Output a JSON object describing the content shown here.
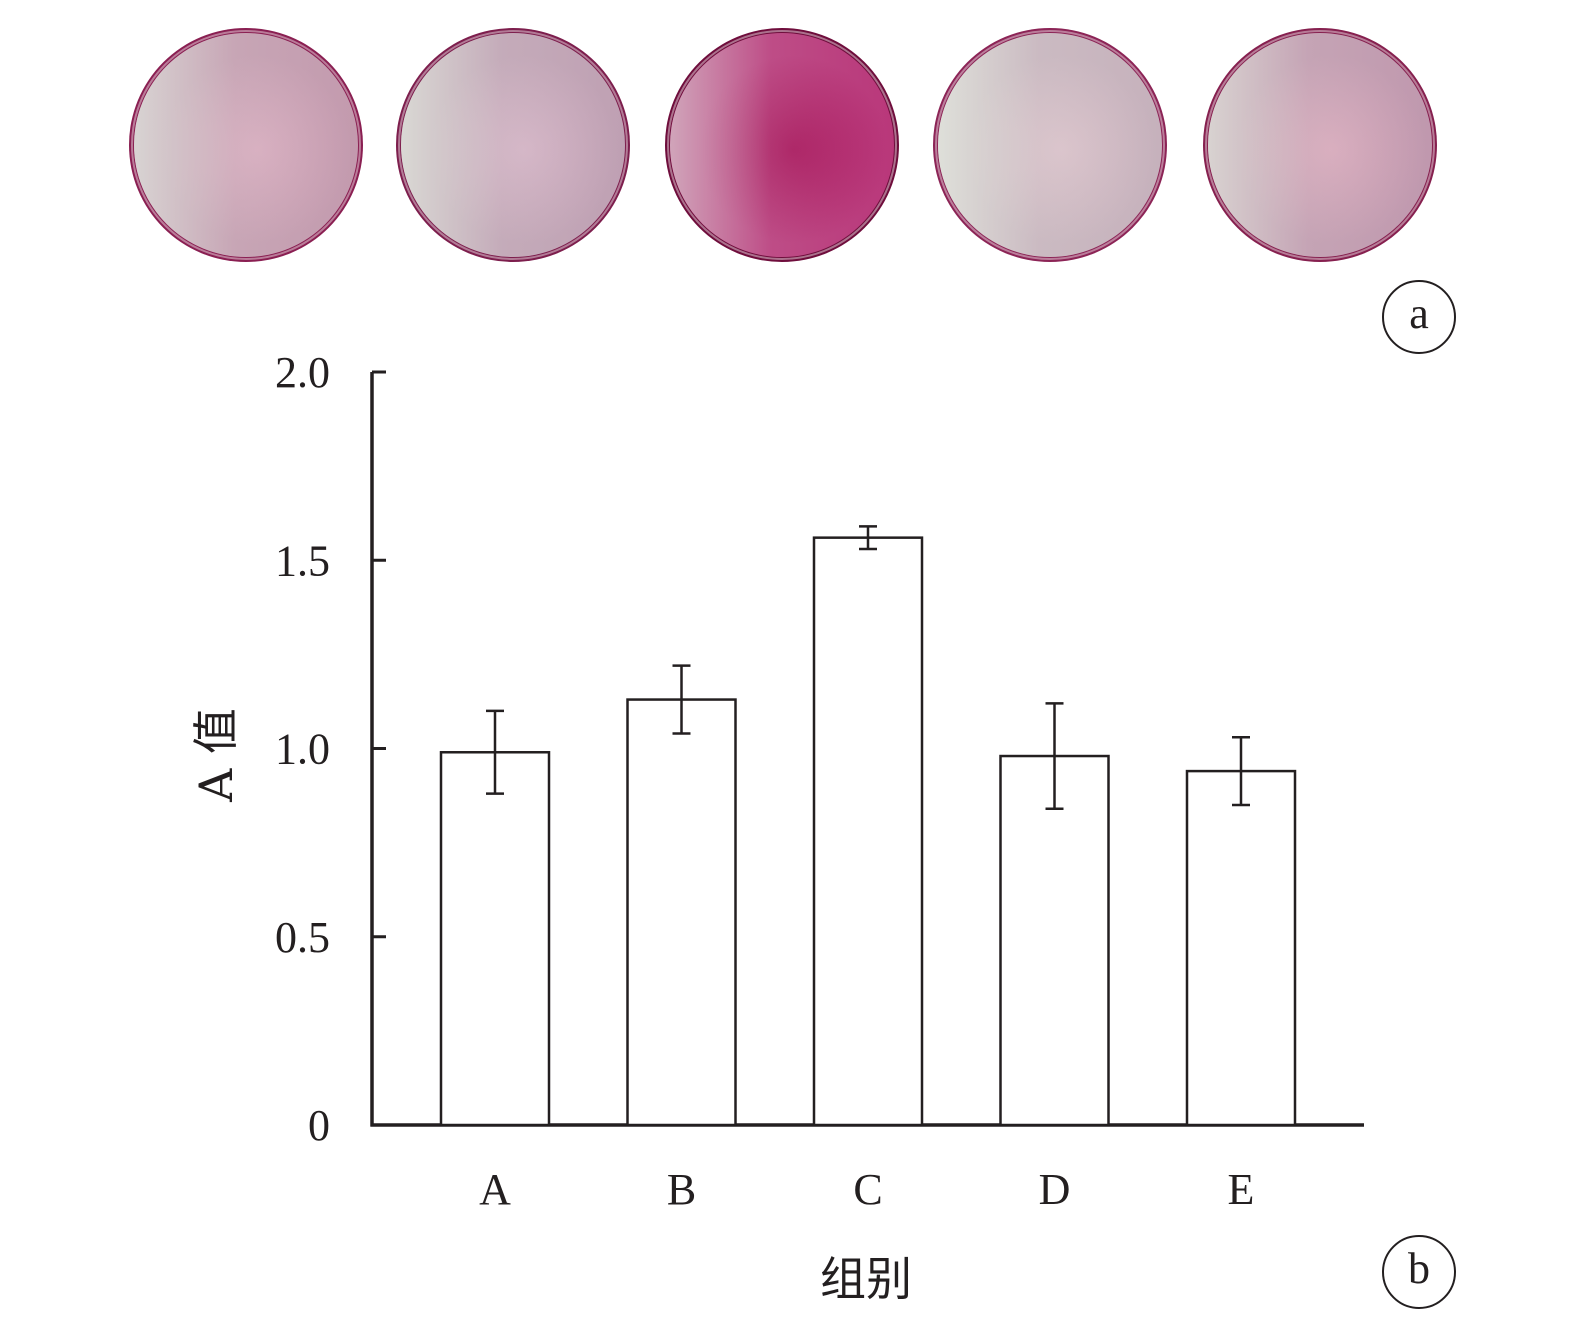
{
  "panels": {
    "a_label": "a",
    "b_label": "b"
  },
  "wells": {
    "count": 5,
    "colors": [
      {
        "center": "#d7a9bd",
        "mid": "#c39aae",
        "rim": "#8a1f52",
        "sheen": "#dfe7df"
      },
      {
        "center": "#d3b0c4",
        "mid": "#bfa0b3",
        "rim": "#7d1e4d",
        "sheen": "#e2ebdf"
      },
      {
        "center": "#a8125a",
        "mid": "#b9377a",
        "rim": "#6f0d3c",
        "sheen": "#d8c9cf"
      },
      {
        "center": "#d9bfc9",
        "mid": "#c6b1bc",
        "rim": "#8c2456",
        "sheen": "#e6efe3"
      },
      {
        "center": "#d8a7bb",
        "mid": "#c098ae",
        "rim": "#86204f",
        "sheen": "#e0e6dc"
      }
    ]
  },
  "chart_data": {
    "type": "bar",
    "categories": [
      "A",
      "B",
      "C",
      "D",
      "E"
    ],
    "values": [
      0.99,
      1.13,
      1.56,
      0.98,
      0.94
    ],
    "error": [
      0.11,
      0.09,
      0.03,
      0.14,
      0.09
    ],
    "xlabel": "组别",
    "ylabel": "A 值",
    "ylim": [
      0,
      2.0
    ],
    "yticks": [
      0,
      0.5,
      1.0,
      1.5,
      2.0
    ],
    "ytick_labels": [
      "0",
      "0.5",
      "1.0",
      "1.5",
      "2.0"
    ],
    "bar_fill": "#ffffff",
    "bar_stroke": "#231f20",
    "grid": false,
    "legend": "none"
  }
}
